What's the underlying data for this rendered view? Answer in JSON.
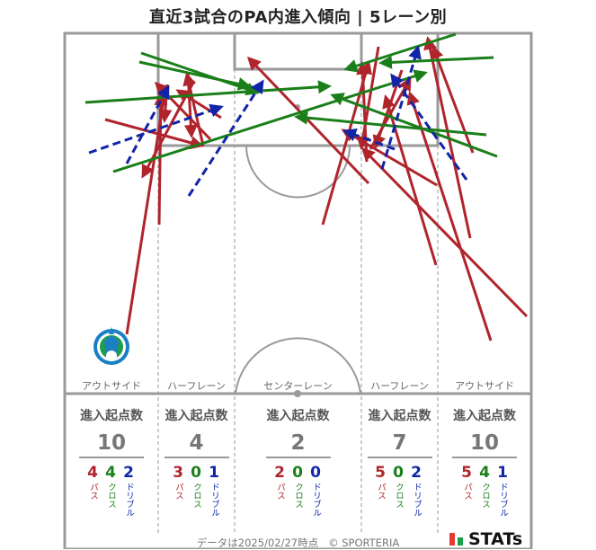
{
  "title": "直近3試合のPA内進入傾向 | 5レーン別",
  "lanes": [
    {
      "name": "アウトサイド",
      "header": "進入起点数",
      "total": "10",
      "pass": "4",
      "cross": "4",
      "dribble": "2"
    },
    {
      "name": "ハーフレーン",
      "header": "進入起点数",
      "total": "4",
      "pass": "3",
      "cross": "0",
      "dribble": "1"
    },
    {
      "name": "センターレーン",
      "header": "進入起点数",
      "total": "2",
      "pass": "2",
      "cross": "0",
      "dribble": "0"
    },
    {
      "name": "ハーフレーン",
      "header": "進入起点数",
      "total": "7",
      "pass": "5",
      "cross": "0",
      "dribble": "2"
    },
    {
      "name": "アウトサイド",
      "header": "進入起点数",
      "total": "10",
      "pass": "5",
      "cross": "4",
      "dribble": "1"
    }
  ],
  "legend": {
    "pass": "パス",
    "cross": "クロス",
    "dribble": "ドリブル"
  },
  "footer": {
    "date_text": "データは2025/02/27時点",
    "copyright": "© SPORTERIA",
    "brand": "STATs"
  },
  "colors": {
    "pass": "#b0242c",
    "cross": "#1a7f1a",
    "dribble": "#1224a8",
    "pitch_line": "#999999"
  },
  "team_crest": "shonan-bellmare-crest"
}
